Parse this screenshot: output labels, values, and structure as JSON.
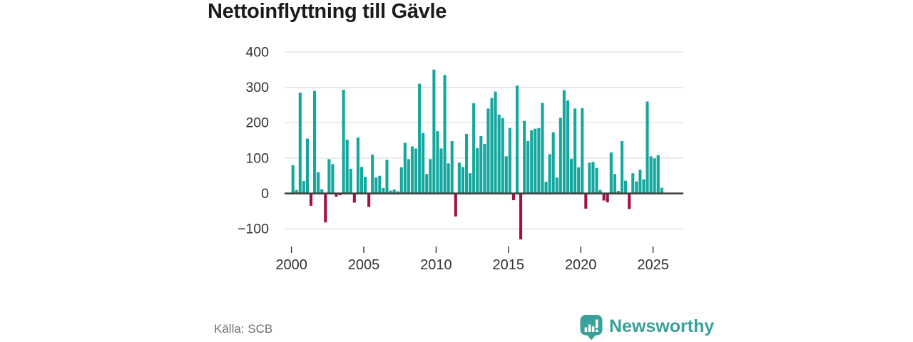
{
  "title": "Nettoinflyttning till Gävle",
  "source_label": "Källa: SCB",
  "brand": {
    "wordmark": "Newsworthy"
  },
  "colors": {
    "positive": "#14a79e",
    "negative": "#a21046",
    "grid": "#e1e1e1",
    "zero_axis": "#3c3c3c",
    "tick": "#333333",
    "tick_label": "#333333",
    "title": "#1b1b1b",
    "source": "#6e7178",
    "brand": "#3aa09a"
  },
  "chart_data": {
    "type": "bar",
    "title": "Nettoinflyttning till Gävle",
    "frequency": "quarterly",
    "x_start": {
      "year": 2000,
      "quarter": 1
    },
    "values": [
      80,
      10,
      285,
      35,
      155,
      -35,
      290,
      60,
      12,
      -82,
      97,
      83,
      -9,
      -5,
      293,
      152,
      70,
      -26,
      158,
      75,
      47,
      -38,
      110,
      45,
      50,
      15,
      95,
      8,
      11,
      6,
      74,
      143,
      97,
      133,
      127,
      310,
      171,
      55,
      97,
      350,
      176,
      127,
      335,
      85,
      148,
      -65,
      87,
      75,
      168,
      57,
      255,
      128,
      162,
      140,
      240,
      270,
      288,
      223,
      213,
      105,
      185,
      -19,
      305,
      -130,
      205,
      148,
      179,
      183,
      185,
      256,
      33,
      111,
      173,
      45,
      214,
      292,
      263,
      98,
      240,
      74,
      241,
      -43,
      87,
      89,
      72,
      10,
      -20,
      -25,
      116,
      55,
      7,
      148,
      36,
      -44,
      57,
      34,
      67,
      40,
      260,
      105,
      99,
      108,
      16
    ],
    "x_tick_labels": [
      "2000",
      "2005",
      "2010",
      "2015",
      "2020",
      "2025"
    ],
    "x_tick_quarter_offsets": [
      0,
      20,
      40,
      60,
      80,
      100
    ],
    "y_ticks": [
      400,
      300,
      200,
      100,
      0,
      -100
    ],
    "ylim": [
      -160,
      410
    ],
    "grid": true,
    "legend": false,
    "source": "Källa: SCB"
  }
}
